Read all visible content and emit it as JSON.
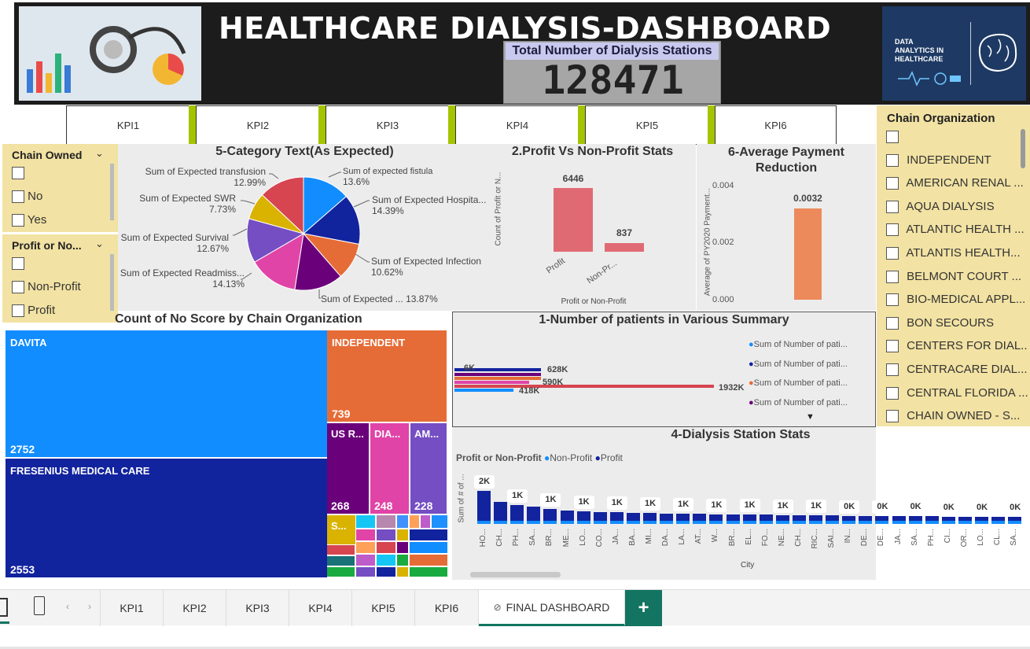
{
  "header": {
    "title": "HEALTHCARE DIALYSIS-DASHBOARD",
    "card_label": "Total Number of Dialysis Stations",
    "card_value": "128471",
    "logo_text": [
      "DATA",
      "ANALYTICS IN",
      "HEALTHCARE"
    ]
  },
  "kpi_buttons": [
    "KPI1",
    "KPI2",
    "KPI3",
    "KPI4",
    "KPI5",
    "KPI6"
  ],
  "slicer_chain_owned": {
    "title": "Chain Owned",
    "options": [
      "",
      "No",
      "Yes"
    ]
  },
  "slicer_profit": {
    "title": "Profit or No...",
    "options": [
      "",
      "Non-Profit",
      "Profit"
    ]
  },
  "slicer_chain_org": {
    "title": "Chain Organization",
    "options": [
      "",
      "INDEPENDENT",
      "AMERICAN RENAL ...",
      "AQUA DIALYSIS",
      "ATLANTIC HEALTH ...",
      "ATLANTIS HEALTH...",
      "BELMONT COURT ...",
      "BIO-MEDICAL APPL...",
      "BON SECOURS",
      "CENTERS FOR DIAL...",
      "CENTRACARE DIAL...",
      "CENTRAL FLORIDA ...",
      "CHAIN OWNED - S..."
    ]
  },
  "pie": {
    "title": "5-Category Text(As Expected)",
    "labels": [
      {
        "name": "Sum of expected fistula",
        "pct": "13.6%"
      },
      {
        "name": "Sum of Expected Hospita...",
        "pct": "14.39%"
      },
      {
        "name": "Sum of Expected Infection",
        "pct": "10.62%"
      },
      {
        "name": "Sum of Expected ...",
        "pct": "13.87%"
      },
      {
        "name": "Sum of Expected Readmiss...",
        "pct": "14.13%"
      },
      {
        "name": "Sum of Expected Survival",
        "pct": "12.67%"
      },
      {
        "name": "Sum of Expected SWR",
        "pct": "7.73%"
      },
      {
        "name": "Sum of Expected transfusion",
        "pct": "12.99%"
      }
    ]
  },
  "profit_chart": {
    "title": "2.Profit Vs Non-Profit Stats",
    "ylabel": "Count of Profit or N...",
    "xlabel": "Profit or Non-Profit",
    "cats": [
      "Profit",
      "Non-Pr..."
    ],
    "vals": [
      "6446",
      "837"
    ]
  },
  "payment_chart": {
    "title": "6-Average Payment Reduction",
    "ylabel": "Average of PY2020 Payment...",
    "ticks": [
      "0.004",
      "0.002",
      "0.000"
    ],
    "value": "0.0032"
  },
  "treemap": {
    "title": "Count of No Score by Chain Organization",
    "items": [
      {
        "name": "DAVITA",
        "value": "2752"
      },
      {
        "name": "FRESENIUS MEDICAL CARE",
        "value": "2553"
      },
      {
        "name": "INDEPENDENT",
        "value": "739"
      },
      {
        "name": "US R...",
        "value": "268"
      },
      {
        "name": "DIA...",
        "value": "248"
      },
      {
        "name": "AM...",
        "value": "228"
      },
      {
        "name": "S...",
        "value": ""
      }
    ]
  },
  "patients_chart": {
    "title": "1-Number of patients in Various Summary",
    "labels": [
      "6K",
      "628K",
      "590K",
      "418K",
      "1932K"
    ],
    "legend": [
      "Sum of Number of pati...",
      "Sum of Number of pati...",
      "Sum of Number of pati...",
      "Sum of Number of pati..."
    ]
  },
  "station_chart": {
    "title": "4-Dialysis Station Stats",
    "legend_title": "Profit or Non-Profit",
    "legend": [
      "Non-Profit",
      "Profit"
    ],
    "ylabel": "Sum of # of ...",
    "xlabel": "City",
    "cities": [
      "HO...",
      "CH...",
      "PH...",
      "SA...",
      "BR...",
      "ME...",
      "LO...",
      "CO...",
      "JA...",
      "BA...",
      "MI...",
      "DA...",
      "LA...",
      "AT...",
      "W...",
      "BR...",
      "EL...",
      "FO...",
      "NE...",
      "CH...",
      "RIC...",
      "SAI...",
      "IN...",
      "DE...",
      "DE...",
      "JA...",
      "SA...",
      "PH...",
      "CI...",
      "OR...",
      "LO...",
      "CL...",
      "SA..."
    ],
    "data_labels": [
      "2K",
      "1K",
      "1K",
      "1K",
      "1K",
      "1K",
      "1K",
      "1K",
      "1K",
      "1K",
      "1K",
      "0K",
      "0K",
      "0K",
      "0K",
      "0K",
      "0K",
      "0K"
    ]
  },
  "tabs": [
    "KPI1",
    "KPI2",
    "KPI3",
    "KPI4",
    "KPI5",
    "KPI6",
    "FINAL DASHBOARD"
  ],
  "colors": {
    "accent": "#127461",
    "kpi_sep": "#a4c400",
    "slicer": "#f2e2a3",
    "profit": "#12239e",
    "nonprofit": "#118dff"
  }
}
